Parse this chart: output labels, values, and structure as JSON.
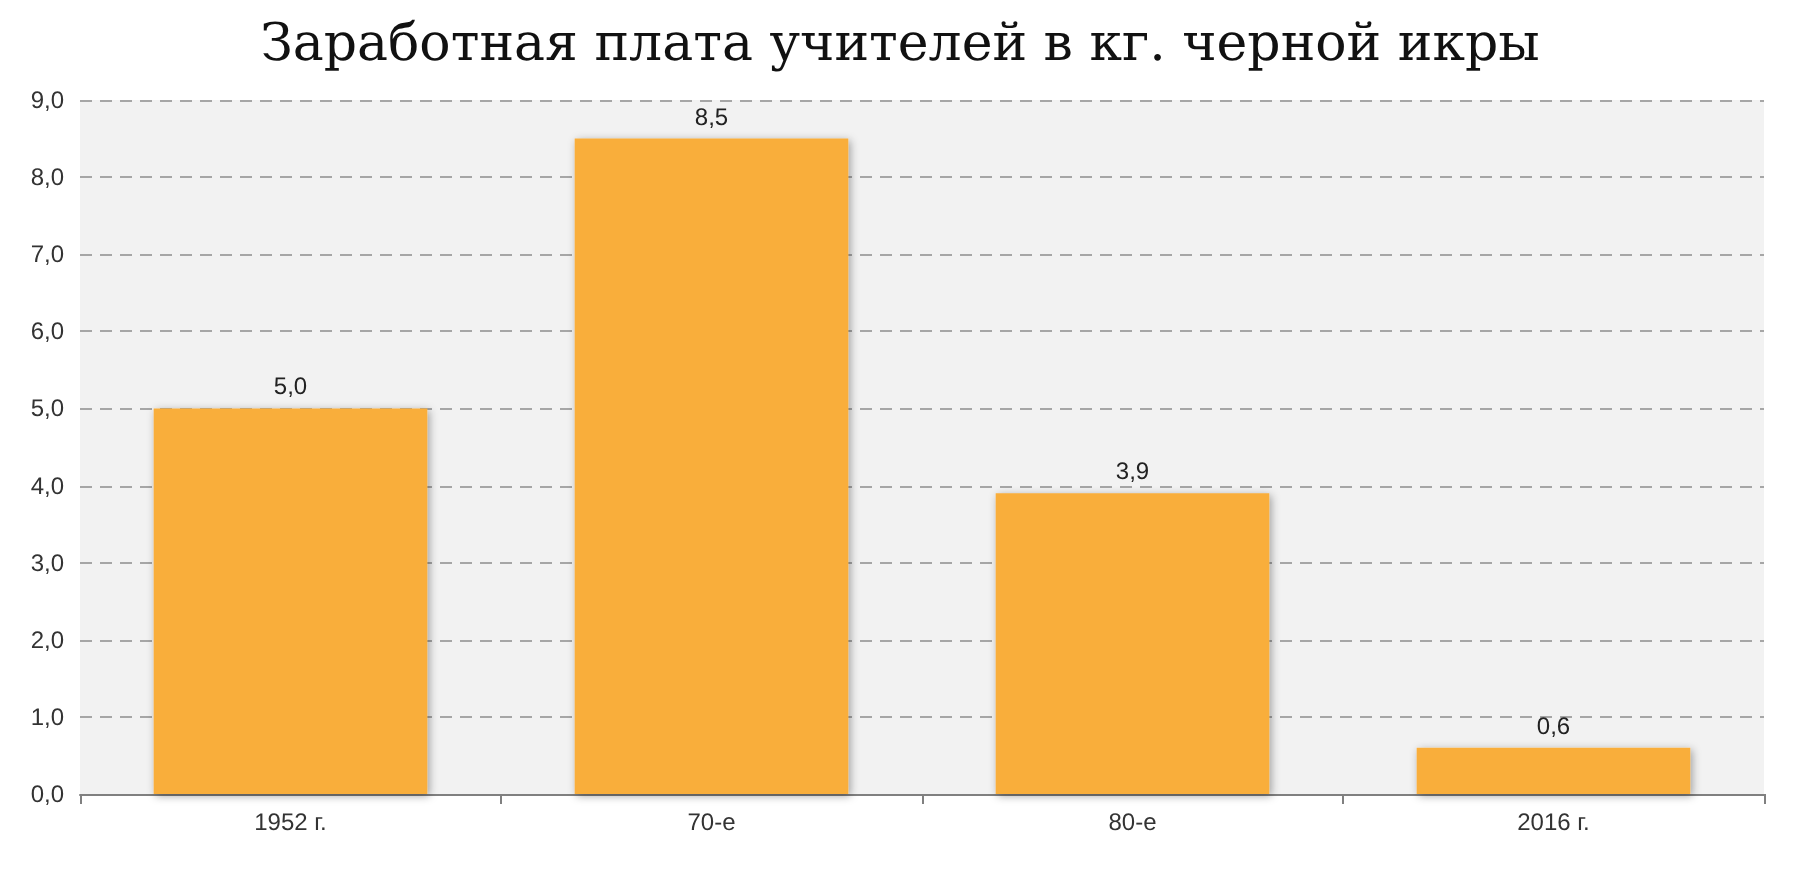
{
  "chart_data": {
    "type": "bar",
    "title": "Заработная плата учителей в кг. черной икры",
    "categories": [
      "1952 г.",
      "70-е",
      "80-е",
      "2016 г."
    ],
    "values": [
      5.0,
      8.5,
      3.9,
      0.6
    ],
    "value_labels": [
      "5,0",
      "8,5",
      "3,9",
      "0,6"
    ],
    "color": "#f9ae3b",
    "ylim": [
      0,
      9
    ],
    "yticks": [
      {
        "value": 0,
        "label": "0,0"
      },
      {
        "value": 1,
        "label": "1,0"
      },
      {
        "value": 2,
        "label": "2,0"
      },
      {
        "value": 3,
        "label": "3,0"
      },
      {
        "value": 4,
        "label": "4,0"
      },
      {
        "value": 5,
        "label": "5,0"
      },
      {
        "value": 6,
        "label": "6,0"
      },
      {
        "value": 7,
        "label": "7,0"
      },
      {
        "value": 8,
        "label": "8,0"
      },
      {
        "value": 9,
        "label": "9,0"
      }
    ],
    "grid": "y"
  }
}
